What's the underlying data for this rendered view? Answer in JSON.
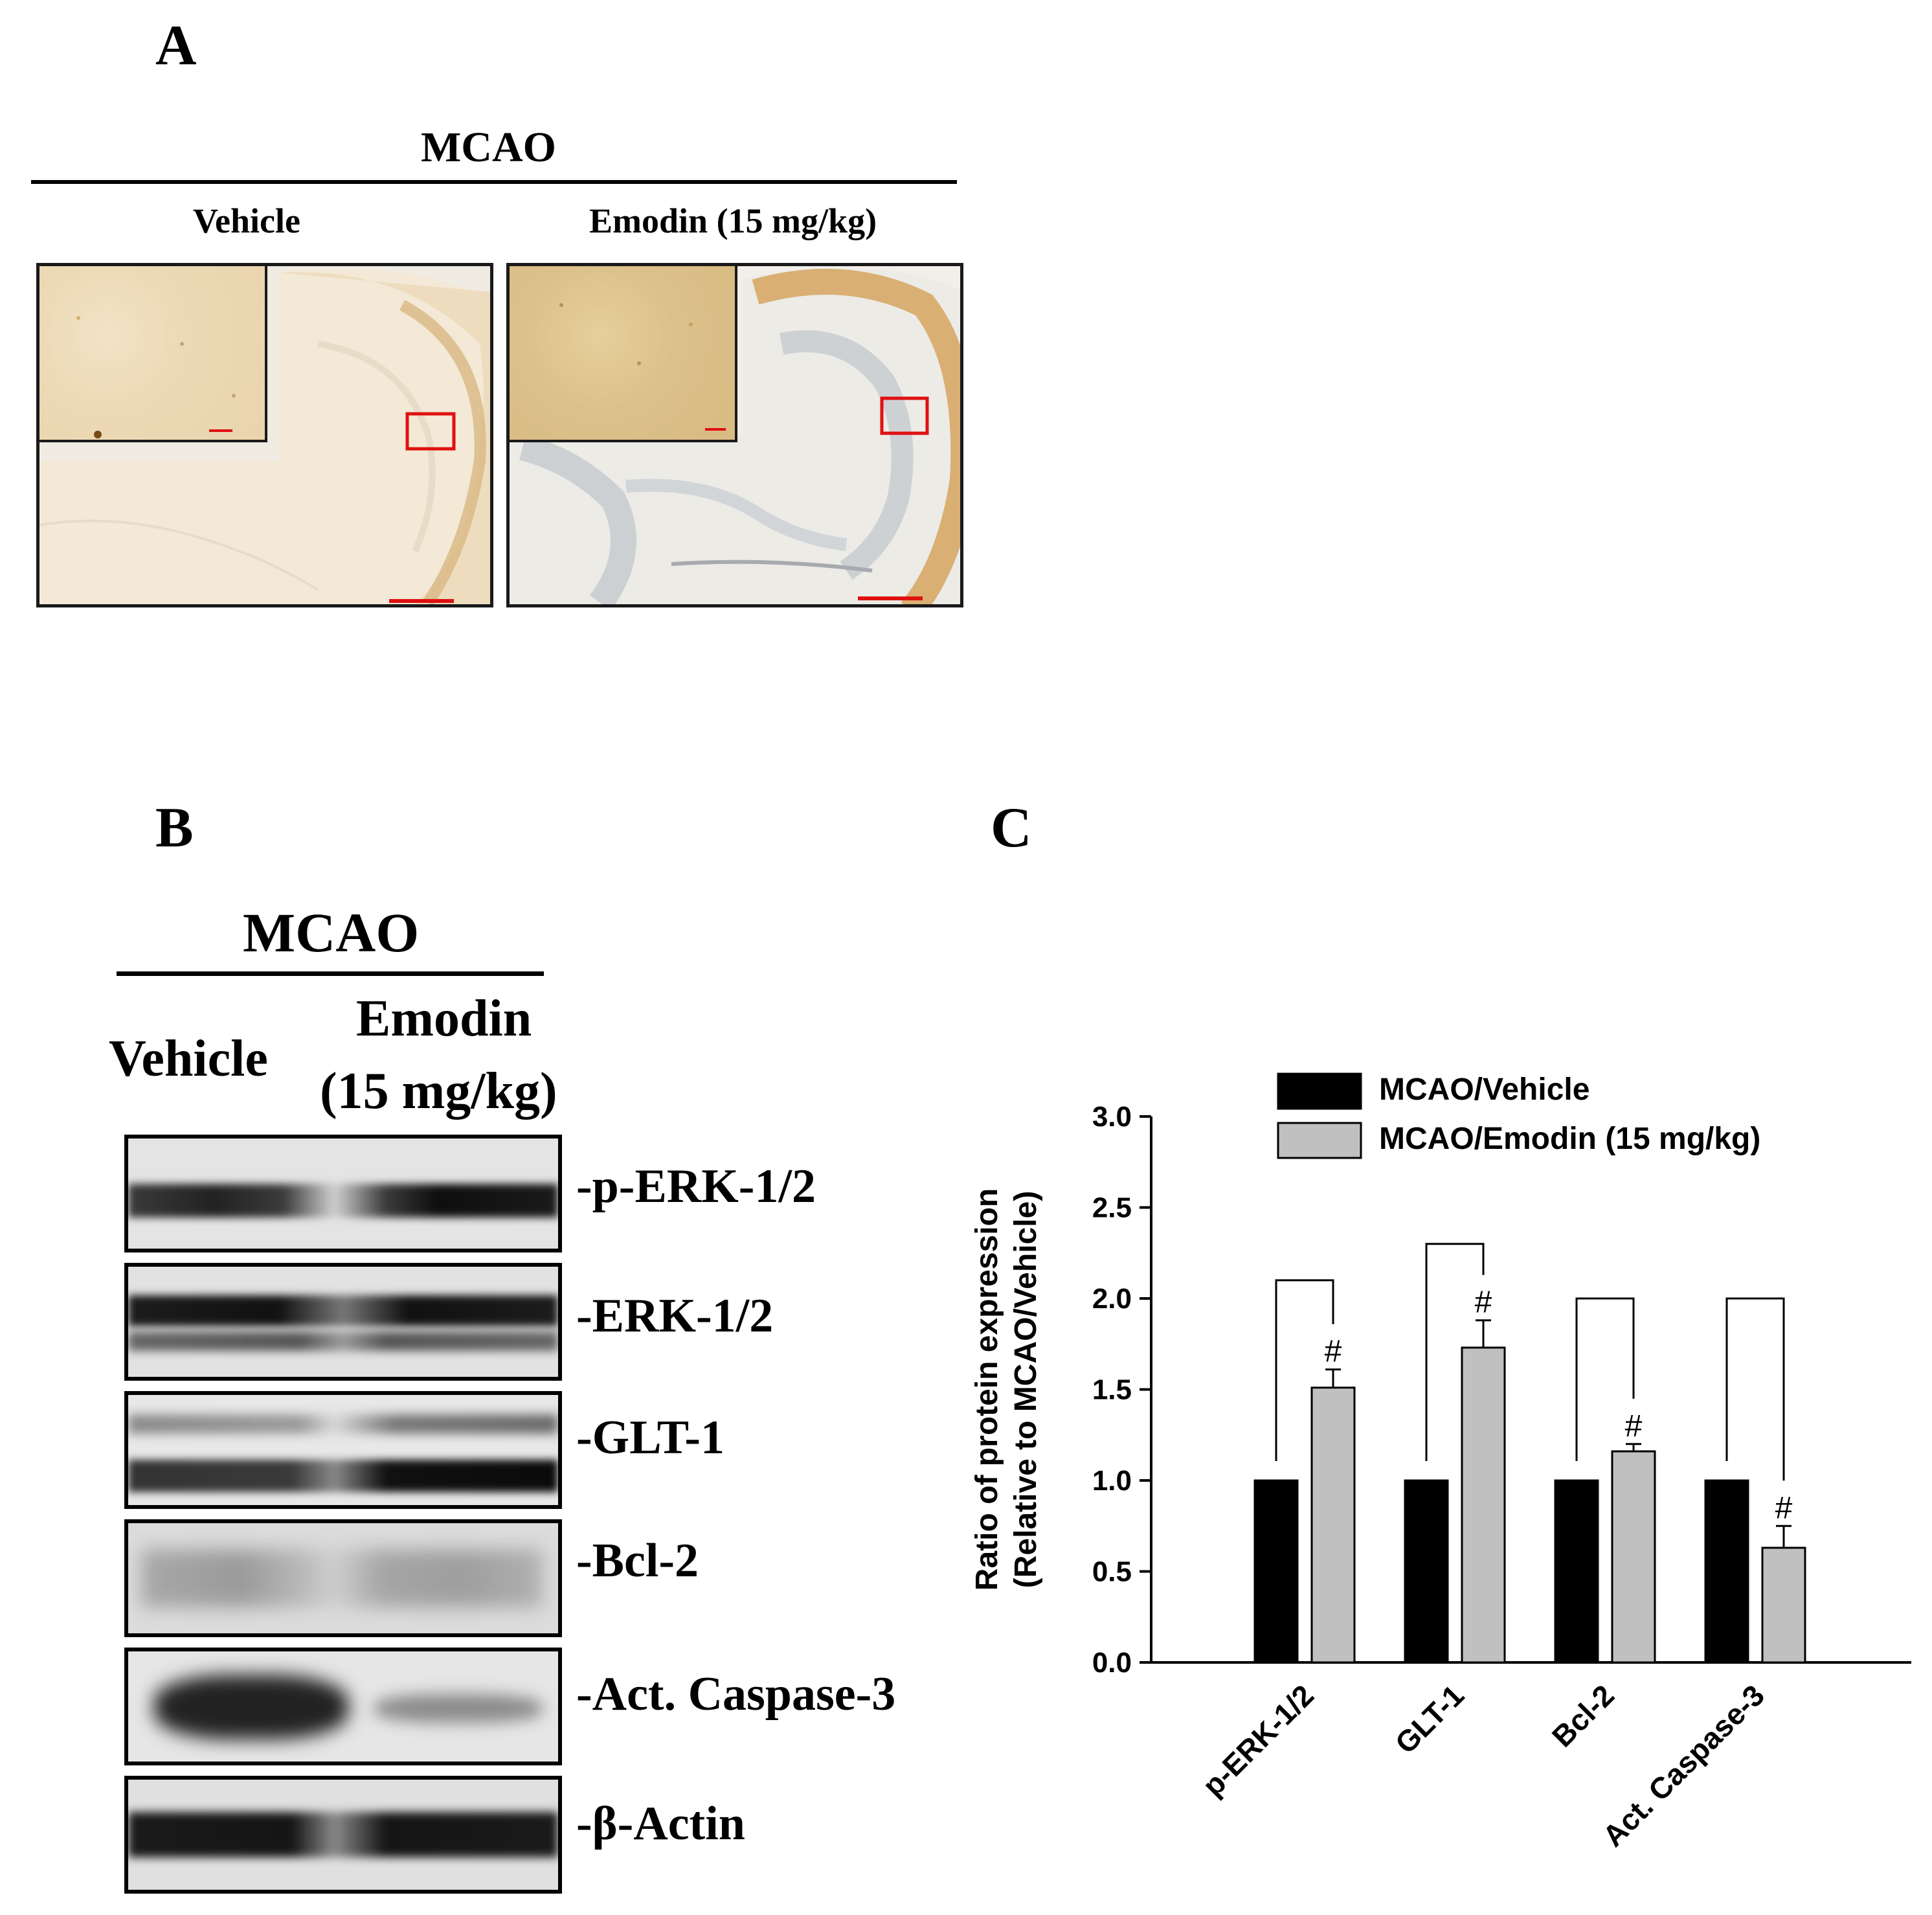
{
  "panels": {
    "a": "A",
    "b": "B",
    "c": "C"
  },
  "panel_a": {
    "header": "MCAO",
    "groups": [
      "Vehicle",
      "Emodin (15 mg/kg)"
    ]
  },
  "panel_b": {
    "header": "MCAO",
    "lane1": "Vehicle",
    "lane2_line1": "Emodin",
    "lane2_line2": "(15 mg/kg)",
    "bands": [
      "-p-ERK-1/2",
      "-ERK-1/2",
      "-GLT-1",
      "-Bcl-2",
      "-Act. Caspase-3",
      "-β-Actin"
    ]
  },
  "chart_data": {
    "type": "bar",
    "ylabel_line1": "Ratio of protein expression",
    "ylabel_line2": "(Relative to MCAO/Vehicle)",
    "ylim": [
      0,
      3.0
    ],
    "yticks": [
      "0.0",
      "0.5",
      "1.0",
      "1.5",
      "2.0",
      "2.5",
      "3.0"
    ],
    "categories": [
      "p-ERK-1/2",
      "GLT-1",
      "Bcl-2",
      "Act. Caspase-3"
    ],
    "series": [
      {
        "name": "MCAO/Vehicle",
        "color": "#000000",
        "values": [
          1.0,
          1.0,
          1.0,
          1.0
        ],
        "errors": [
          0,
          0,
          0,
          0
        ]
      },
      {
        "name": "MCAO/Emodin (15 mg/kg)",
        "color": "#c0c0c0",
        "values": [
          1.51,
          1.73,
          1.16,
          0.63
        ],
        "errors": [
          0.1,
          0.15,
          0.04,
          0.12
        ]
      }
    ],
    "significance": [
      "#",
      "#",
      "#",
      "#"
    ],
    "bracket_tops": [
      2.1,
      2.3,
      2.0,
      2.0
    ],
    "legend_position": "top"
  }
}
